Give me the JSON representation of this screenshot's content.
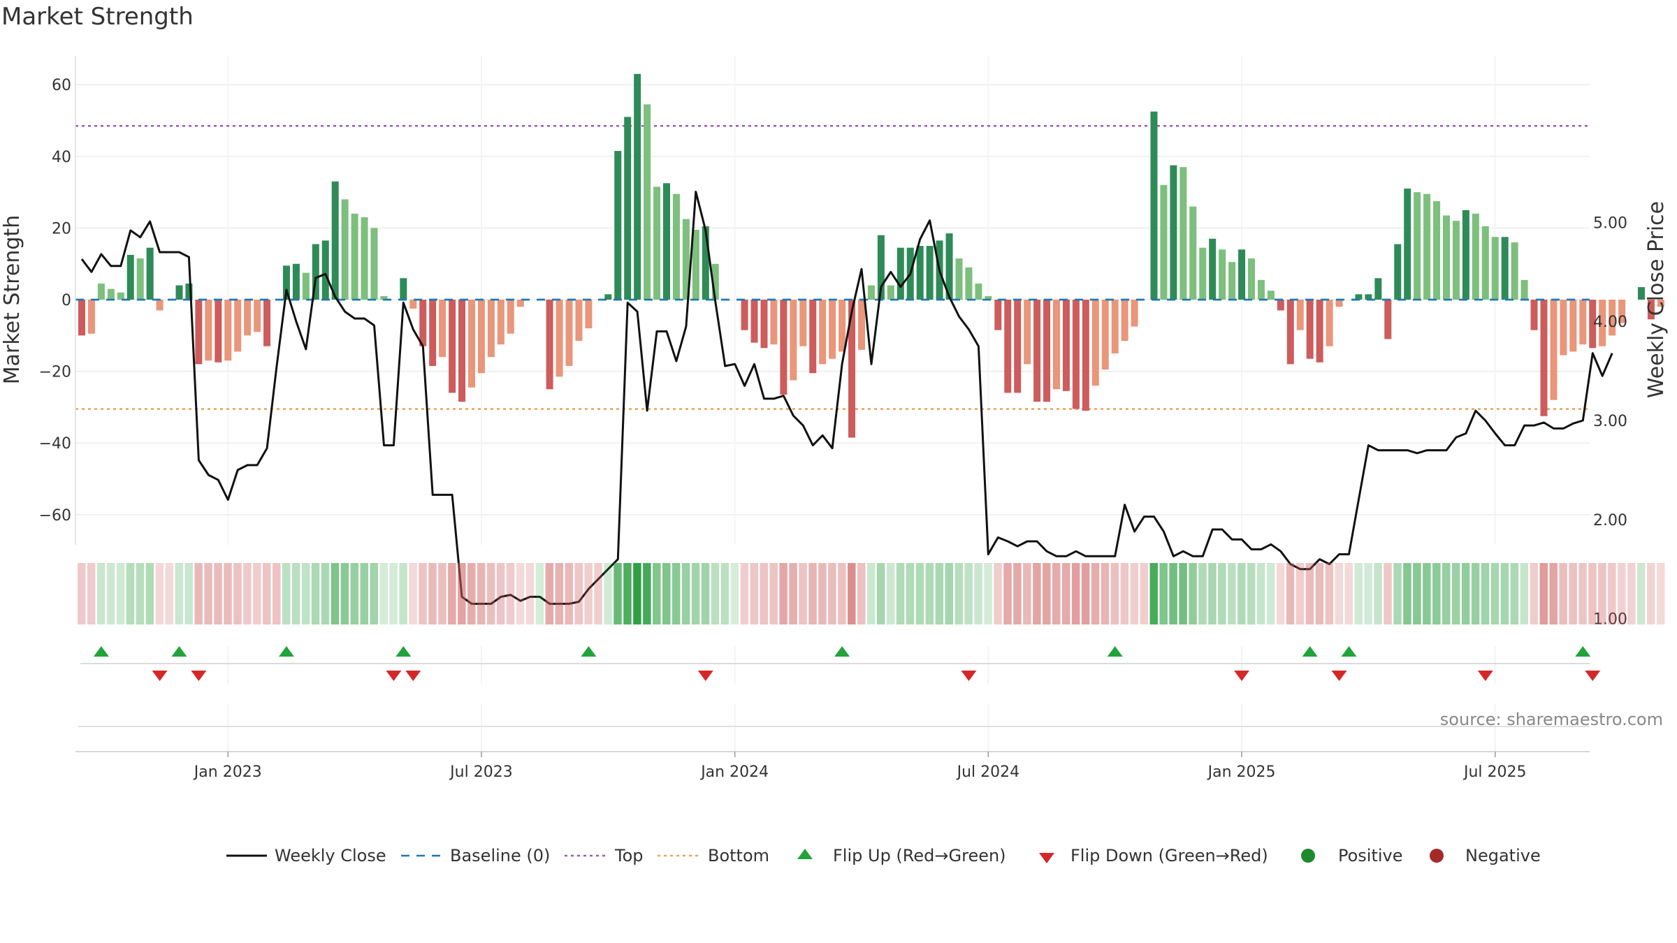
{
  "title": "Market Strength",
  "chart_data": {
    "type": "bar",
    "title": "Market Strength",
    "ylabel_left": "Market Strength",
    "ylabel_right": "Weekly Close Price",
    "ylim_left": [
      -70,
      70
    ],
    "ylim_right": [
      0.8,
      5.7
    ],
    "yticks_left": [
      "60",
      "40",
      "20",
      "0",
      "−20",
      "−40",
      "−60"
    ],
    "yticks_left_values": [
      60,
      40,
      20,
      0,
      -20,
      -40,
      -60
    ],
    "yticks_right": [
      "5.00",
      "4.00",
      "3.00",
      "2.00",
      "1.00"
    ],
    "yticks_right_values": [
      5,
      4,
      3,
      2,
      1
    ],
    "xticks": [
      "Jan 2023",
      "Jul 2023",
      "Jan 2024",
      "Jul 2024",
      "Jan 2025",
      "Jul 2025"
    ],
    "xticks_week_index": [
      15,
      41,
      67,
      93,
      119,
      145
    ],
    "top_line": 48.5,
    "bottom_line": -30.5,
    "baseline": 0,
    "strength": [
      -10,
      -9.5,
      4.5,
      3,
      2,
      12.5,
      11.5,
      14.5,
      -3,
      0,
      4,
      4.5,
      -18,
      -17,
      -17.5,
      -17,
      -14.5,
      -10,
      -9,
      -13,
      0,
      9.5,
      10,
      7.5,
      15.5,
      16.5,
      33,
      28,
      24,
      23,
      20,
      1,
      0,
      6,
      -2.5,
      -13,
      -18.5,
      -16,
      -26,
      -28.5,
      -24.5,
      -20.5,
      -16,
      -12.5,
      -9.5,
      -2,
      0,
      0,
      -25,
      -21.5,
      -18.5,
      -11.5,
      -8,
      0,
      1.5,
      41.5,
      51,
      63,
      54.5,
      31.5,
      32.5,
      29.5,
      22.5,
      19.5,
      20.5,
      10,
      0,
      0,
      -8.5,
      -12,
      -13.5,
      -12.5,
      -26.5,
      -22.5,
      -13,
      -20.5,
      -18,
      -16.5,
      -14.5,
      -38.5,
      -14,
      4,
      18,
      4,
      14.5,
      14.5,
      15,
      15,
      16.5,
      18.5,
      11.5,
      9,
      4.5,
      1,
      -8.5,
      -26,
      -26,
      -18,
      -28.5,
      -28.5,
      -25,
      -25.5,
      -30.5,
      -31,
      -24,
      -19.5,
      -15,
      -11.5,
      -7.5,
      0,
      52.5,
      32,
      37.5,
      37,
      26,
      14.5,
      17,
      14,
      10.5,
      14,
      11.5,
      5.5,
      2.5,
      -3,
      -18,
      -8.5,
      -16.5,
      -17.5,
      -13,
      -2,
      0,
      1.5,
      1.5,
      6,
      -11,
      15.5,
      31,
      30,
      29.5,
      27.5,
      23.5,
      22,
      25,
      24,
      20.5,
      17.5,
      17.5,
      16,
      5.5,
      -8.5,
      -32.5,
      -28,
      -15.5,
      -14.5,
      -12.5,
      -13.5,
      -13,
      -10,
      -6.5,
      0,
      3.5,
      -5.5,
      -2
    ],
    "weekly_close": [
      4.63,
      4.5,
      4.68,
      4.56,
      4.56,
      4.92,
      4.85,
      5.01,
      4.7,
      4.7,
      4.7,
      4.65,
      2.6,
      2.45,
      2.4,
      2.2,
      2.5,
      2.55,
      2.55,
      2.72,
      3.55,
      4.32,
      4.0,
      3.72,
      4.44,
      4.48,
      4.25,
      4.1,
      4.03,
      4.03,
      3.96,
      2.75,
      2.75,
      4.19,
      3.92,
      3.75,
      2.25,
      2.25,
      2.25,
      1.22,
      1.15,
      1.15,
      1.15,
      1.22,
      1.24,
      1.18,
      1.22,
      1.22,
      1.15,
      1.15,
      1.15,
      1.17,
      1.3,
      1.4,
      1.5,
      1.6,
      4.19,
      4.1,
      3.1,
      3.9,
      3.9,
      3.6,
      3.95,
      5.31,
      4.92,
      4.2,
      3.55,
      3.57,
      3.35,
      3.57,
      3.22,
      3.22,
      3.25,
      3.05,
      2.95,
      2.75,
      2.85,
      2.72,
      3.57,
      4.1,
      4.53,
      3.57,
      4.35,
      4.5,
      4.35,
      4.48,
      4.83,
      5.02,
      4.51,
      4.25,
      4.05,
      3.92,
      3.75,
      1.65,
      1.82,
      1.78,
      1.73,
      1.78,
      1.78,
      1.68,
      1.63,
      1.63,
      1.68,
      1.63,
      1.63,
      1.63,
      1.63,
      2.15,
      1.88,
      2.03,
      2.03,
      1.88,
      1.63,
      1.68,
      1.63,
      1.63,
      1.9,
      1.9,
      1.8,
      1.8,
      1.7,
      1.7,
      1.75,
      1.68,
      1.55,
      1.5,
      1.5,
      1.6,
      1.55,
      1.65,
      1.65,
      2.2,
      2.75,
      2.7,
      2.7,
      2.7,
      2.7,
      2.67,
      2.7,
      2.7,
      2.7,
      2.83,
      2.87,
      3.1,
      3.0,
      2.87,
      2.75,
      2.75,
      2.95,
      2.95,
      2.98,
      2.92,
      2.92,
      2.97,
      3.0,
      3.68,
      3.45,
      3.68
    ],
    "flip_up_weeks": [
      2,
      10,
      21,
      33,
      52,
      78,
      106,
      126,
      130,
      154
    ],
    "flip_down_weeks": [
      8,
      12,
      32,
      34,
      64,
      91,
      119,
      129,
      144,
      155
    ],
    "legend": [
      "Weekly Close",
      "Baseline (0)",
      "Top",
      "Bottom",
      "Flip Up (Red→Green)",
      "Flip Down (Green→Red)",
      "Positive",
      "Negative"
    ],
    "source": "source: sharemaestro.com"
  },
  "colors": {
    "pos_strong": "#2e8b57",
    "pos_light": "#7dbf7d",
    "neg_strong": "#cd5c5c",
    "neg_light": "#e9967a",
    "line": "#111111",
    "top": "#9b59b6",
    "bottom": "#e9a15a",
    "baseline": "#1f77b4",
    "flip_up": "#22a33a",
    "flip_down": "#d62728",
    "positive_dot": "#1e8a2e",
    "negative_dot": "#a52a2a"
  }
}
